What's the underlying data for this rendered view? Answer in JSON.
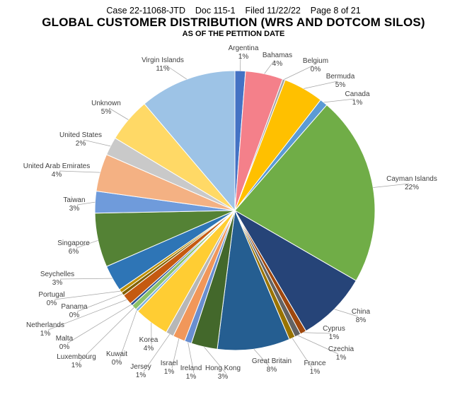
{
  "header": {
    "case": "Case 22-11068-JTD",
    "doc": "Doc 115-1",
    "filed": "Filed 11/22/22",
    "page": "Page 8 of 21"
  },
  "chart_data": {
    "type": "pie",
    "title": "GLOBAL CUSTOMER DISTRIBUTION (WRS AND DOTCOM SILOS)",
    "subtitle": "AS OF THE PETITION DATE",
    "slices": [
      {
        "label": "Argentina",
        "pct_label": "1%",
        "value": 1.2,
        "color": "#4472C4"
      },
      {
        "label": "Bahamas",
        "pct_label": "4%",
        "value": 4.3,
        "color": "#F4808A"
      },
      {
        "label": "Belgium",
        "pct_label": "0%",
        "value": 0.3,
        "color": "#A5A5A5"
      },
      {
        "label": "Bermuda",
        "pct_label": "5%",
        "value": 4.6,
        "color": "#FFC000"
      },
      {
        "label": "Canada",
        "pct_label": "1%",
        "value": 0.9,
        "color": "#5B9BD5"
      },
      {
        "label": "Cayman Islands",
        "pct_label": "22%",
        "value": 21.8,
        "color": "#70AD47"
      },
      {
        "label": "China",
        "pct_label": "8%",
        "value": 8.1,
        "color": "#264478"
      },
      {
        "label": "Cyprus",
        "pct_label": "1%",
        "value": 0.7,
        "color": "#9E480E"
      },
      {
        "label": "Czechia",
        "pct_label": "1%",
        "value": 0.7,
        "color": "#636363"
      },
      {
        "label": "France",
        "pct_label": "1%",
        "value": 0.7,
        "color": "#997300"
      },
      {
        "label": "Great Britain",
        "pct_label": "8%",
        "value": 8.3,
        "color": "#255E91"
      },
      {
        "label": "Hong Kong",
        "pct_label": "3%",
        "value": 3.0,
        "color": "#43682B"
      },
      {
        "label": "Ireland",
        "pct_label": "1%",
        "value": 0.8,
        "color": "#698ED0"
      },
      {
        "label": "Israel",
        "pct_label": "1%",
        "value": 1.4,
        "color": "#F1975A"
      },
      {
        "label": "Jersey",
        "pct_label": "1%",
        "value": 0.9,
        "color": "#B7B7B7"
      },
      {
        "label": "Korea",
        "pct_label": "4%",
        "value": 4.0,
        "color": "#FFCD33"
      },
      {
        "label": "Kuwait",
        "pct_label": "0%",
        "value": 0.3,
        "color": "#7CAFDD"
      },
      {
        "label": "Luxembourg",
        "pct_label": "1%",
        "value": 0.6,
        "color": "#8CC168"
      },
      {
        "label": "Malta",
        "pct_label": "0%",
        "value": 0.3,
        "color": "#2F5597"
      },
      {
        "label": "Netherlands",
        "pct_label": "1%",
        "value": 1.2,
        "color": "#C55A11"
      },
      {
        "label": "Panama",
        "pct_label": "0%",
        "value": 0.4,
        "color": "#7F6000"
      },
      {
        "label": "Portugal",
        "pct_label": "0%",
        "value": 0.4,
        "color": "#BF9000"
      },
      {
        "label": "Seychelles",
        "pct_label": "3%",
        "value": 3.0,
        "color": "#2E75B6"
      },
      {
        "label": "Singapore",
        "pct_label": "6%",
        "value": 6.2,
        "color": "#548235"
      },
      {
        "label": "Taiwan",
        "pct_label": "3%",
        "value": 2.5,
        "color": "#6F9BDB"
      },
      {
        "label": "United Arab Emirates",
        "pct_label": "4%",
        "value": 4.3,
        "color": "#F4B183"
      },
      {
        "label": "United States",
        "pct_label": "2%",
        "value": 2.1,
        "color": "#C9C9C9"
      },
      {
        "label": "Unknown",
        "pct_label": "5%",
        "value": 5.1,
        "color": "#FFD966"
      },
      {
        "label": "Virgin Islands",
        "pct_label": "11%",
        "value": 11.1,
        "color": "#9DC3E6"
      }
    ],
    "legend": "none",
    "start_angle_deg": 0,
    "direction": "clockwise"
  }
}
